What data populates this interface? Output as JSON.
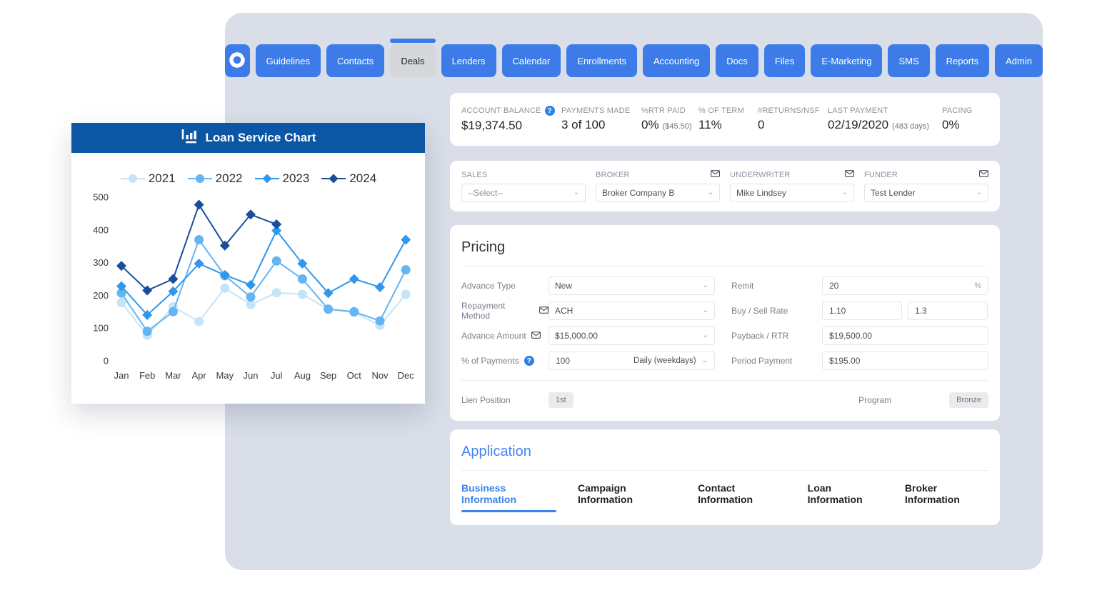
{
  "colors": {
    "nav_blue": "#3d7ce8",
    "panel_bg": "#d9dee8",
    "chart_header_blue": "#0b57a5",
    "accent_blue": "#4285f4"
  },
  "nav": {
    "items": [
      "Guidelines",
      "Contacts",
      "Deals",
      "Lenders",
      "Calendar",
      "Enrollments",
      "Accounting",
      "Docs",
      "Files",
      "E-Marketing",
      "SMS",
      "Reports",
      "Admin"
    ],
    "active": "Deals"
  },
  "stats": {
    "account_balance": {
      "label": "ACCOUNT BALANCE",
      "value": "$19,374.50"
    },
    "payments_made": {
      "label": "PAYMENTS MADE",
      "value": "3 of 100"
    },
    "rtr_paid": {
      "label": "%RTR PAID",
      "value": "0%",
      "suffix": "($45.50)"
    },
    "percent_of_term": {
      "label": "% OF TERM",
      "value": "11%"
    },
    "returns_nsf": {
      "label": "#RETURNS/NSF",
      "value": "0"
    },
    "last_payment": {
      "label": "LAST PAYMENT",
      "value": "02/19/2020",
      "suffix": "(483 days)"
    },
    "pacing": {
      "label": "PACING",
      "value": "0%"
    }
  },
  "assignees": {
    "sales": {
      "label": "SALES",
      "value": "--Select--",
      "placeholder": true
    },
    "broker": {
      "label": "BROKER",
      "value": "Broker Company B"
    },
    "underwriter": {
      "label": "UNDERWRITER",
      "value": "Mike Lindsey"
    },
    "funder": {
      "label": "FUNDER",
      "value": "Test Lender"
    }
  },
  "pricing": {
    "title": "Pricing",
    "advance_type": {
      "label": "Advance Type",
      "value": "New"
    },
    "repayment_method": {
      "label": "Repayment Method",
      "value": "ACH"
    },
    "advance_amount": {
      "label": "Advance Amount",
      "value": "$15,000.00"
    },
    "percent_of_payments": {
      "label": "% of Payments",
      "value": "100",
      "frequency": "Daily (weekdays)"
    },
    "lien_position": {
      "label": "Lien Position",
      "value": "1st"
    },
    "remit": {
      "label": "Remit",
      "value": "20",
      "suffix": "%"
    },
    "buy_sell_rate": {
      "label": "Buy / Sell Rate",
      "buy": "1.10",
      "sell": "1.3"
    },
    "payback_rtr": {
      "label": "Payback / RTR",
      "value": "$19,500.00"
    },
    "period_payment": {
      "label": "Period Payment",
      "value": "$195.00"
    },
    "program": {
      "label": "Program",
      "value": "Bronze"
    }
  },
  "application": {
    "title": "Application",
    "tabs": [
      {
        "label": "Business Information",
        "active": true
      },
      {
        "label": "Campaign Information",
        "active": false
      },
      {
        "label": "Contact Information",
        "active": false
      },
      {
        "label": "Loan Information",
        "active": false
      },
      {
        "label": "Broker Information",
        "active": false
      }
    ]
  },
  "chart_data": {
    "type": "line",
    "title": "Loan Service Chart",
    "x": [
      "Jan",
      "Feb",
      "Mar",
      "Apr",
      "May",
      "Jun",
      "Jul",
      "Aug",
      "Sep",
      "Oct",
      "Nov",
      "Dec"
    ],
    "ylim": [
      0,
      500
    ],
    "yticks": [
      0,
      100,
      200,
      300,
      400,
      500
    ],
    "grid": false,
    "legend_position": "top",
    "series": [
      {
        "name": "2021",
        "color": "#c6e4f8",
        "marker": "circle",
        "values": [
          178,
          78,
          165,
          120,
          222,
          172,
          208,
          203,
          157,
          148,
          108,
          203
        ]
      },
      {
        "name": "2022",
        "color": "#64b5f1",
        "marker": "circle",
        "values": [
          207,
          90,
          150,
          370,
          260,
          195,
          305,
          250,
          158,
          150,
          122,
          278
        ]
      },
      {
        "name": "2023",
        "color": "#2f97ec",
        "marker": "diamond",
        "values": [
          228,
          140,
          212,
          297,
          262,
          232,
          398,
          297,
          207,
          250,
          225,
          370
        ]
      },
      {
        "name": "2024",
        "color": "#1a4e9c",
        "marker": "diamond",
        "values": [
          290,
          215,
          250,
          477,
          352,
          447,
          417
        ]
      }
    ]
  }
}
